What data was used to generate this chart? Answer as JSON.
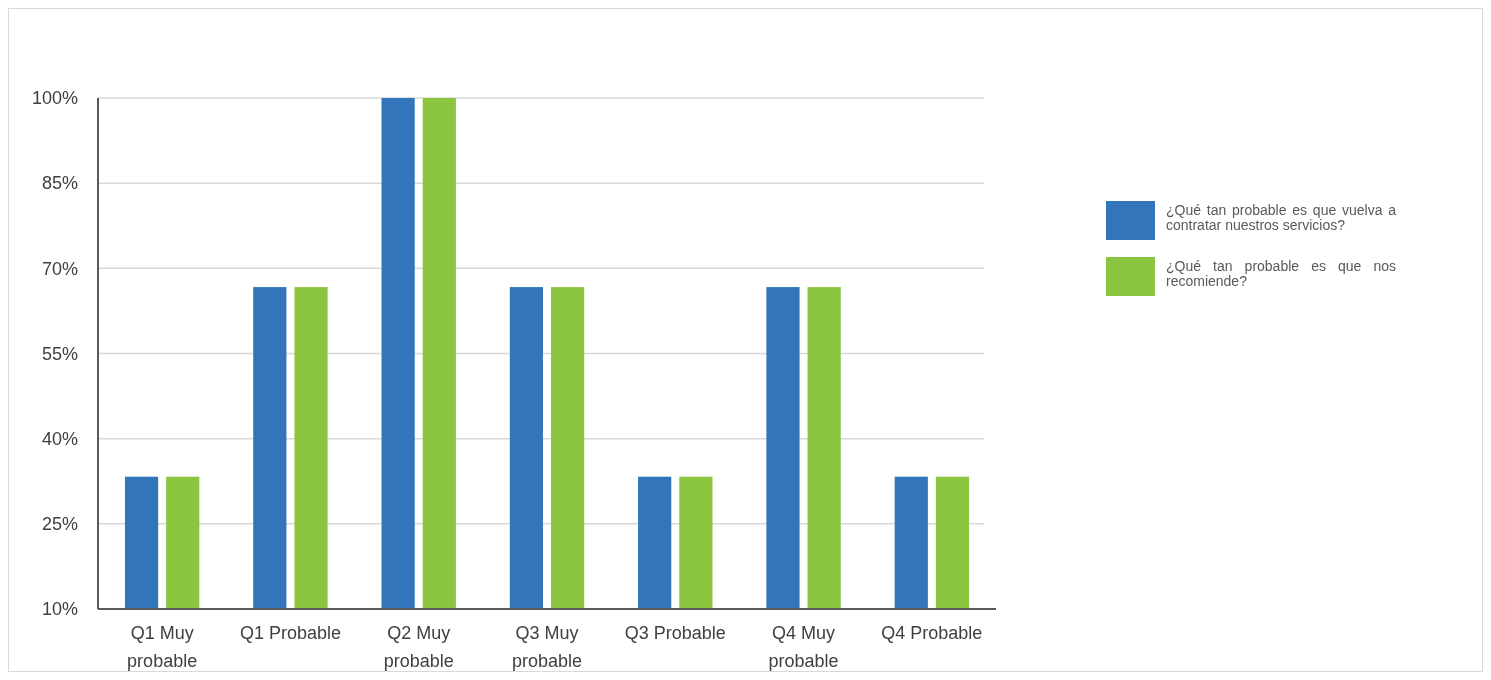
{
  "chart_data": {
    "type": "bar",
    "categories": [
      "Q1 Muy probable",
      "Q1 Probable",
      "Q2 Muy probable",
      "Q3 Muy probable",
      "Q3 Probable",
      "Q4 Muy probable",
      "Q4 Probable"
    ],
    "series": [
      {
        "name": "¿Qué tan probable es que vuelva a contratar nuestros servicios?",
        "color": "#3275bb",
        "values": [
          33.3,
          66.7,
          100,
          66.7,
          33.3,
          66.7,
          33.3
        ]
      },
      {
        "name": "¿Qué tan probable es que nos recomiende?",
        "color": "#8cc540",
        "values": [
          33.3,
          66.7,
          100,
          66.7,
          33.3,
          66.7,
          33.3
        ]
      }
    ],
    "ylim": [
      10,
      100
    ],
    "yticks": [
      {
        "value": 10,
        "label": "10%"
      },
      {
        "value": 25,
        "label": "25%"
      },
      {
        "value": 40,
        "label": "40%"
      },
      {
        "value": 55,
        "label": "55%"
      },
      {
        "value": 70,
        "label": "70%"
      },
      {
        "value": 85,
        "label": "85%"
      },
      {
        "value": 100,
        "label": "100%"
      }
    ],
    "grid": "y",
    "legend": "right"
  }
}
